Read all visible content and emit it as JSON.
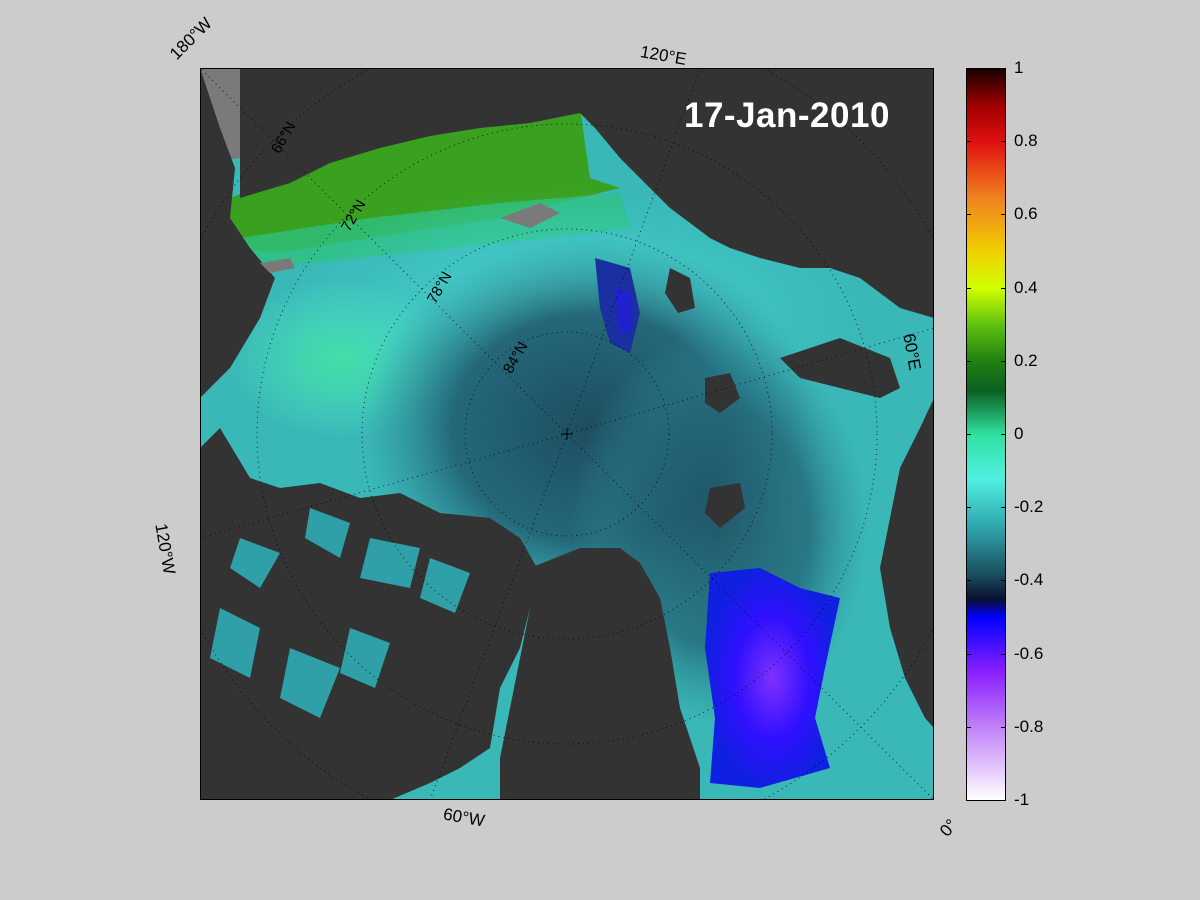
{
  "title": "17-Jan-2010",
  "longitude_labels": {
    "top_left": "180°W",
    "top": "120°E",
    "right": "60°E",
    "left": "120°W",
    "bottom": "60°W",
    "bottom_right": "0°"
  },
  "latitude_labels": [
    "66°N",
    "72°N",
    "78°N",
    "84°N"
  ],
  "colorbar": {
    "ticks": [
      "1",
      "0.8",
      "0.6",
      "0.4",
      "0.2",
      "0",
      "-0.2",
      "-0.4",
      "-0.6",
      "-0.8",
      "-1"
    ],
    "range": [
      -1,
      1
    ],
    "stops": [
      {
        "value": 1.0,
        "color": "#1a0000"
      },
      {
        "value": 0.9,
        "color": "#a00000"
      },
      {
        "value": 0.8,
        "color": "#e01010"
      },
      {
        "value": 0.65,
        "color": "#f08020"
      },
      {
        "value": 0.5,
        "color": "#f0d000"
      },
      {
        "value": 0.4,
        "color": "#d0ff00"
      },
      {
        "value": 0.3,
        "color": "#60c010"
      },
      {
        "value": 0.2,
        "color": "#208010"
      },
      {
        "value": 0.12,
        "color": "#0a6020"
      },
      {
        "value": 0.0,
        "color": "#30e0a0"
      },
      {
        "value": -0.12,
        "color": "#50f0e0"
      },
      {
        "value": -0.25,
        "color": "#30a8b0"
      },
      {
        "value": -0.38,
        "color": "#1a5060"
      },
      {
        "value": -0.45,
        "color": "#0a1030"
      },
      {
        "value": -0.5,
        "color": "#0000ff"
      },
      {
        "value": -0.65,
        "color": "#8a20ff"
      },
      {
        "value": -0.8,
        "color": "#c080f8"
      },
      {
        "value": -1.0,
        "color": "#ffffff"
      }
    ]
  },
  "colors": {
    "land": "#333333",
    "outside": "#7a7a7a",
    "page_background": "#cccccc",
    "ocean_base": "#3ab8b8"
  }
}
